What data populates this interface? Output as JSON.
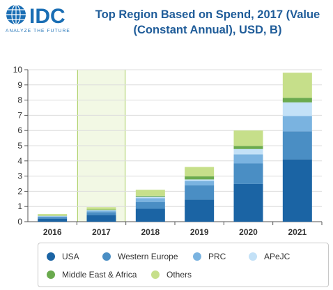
{
  "logo": {
    "text": "IDC",
    "tagline": "ANALYZE THE FUTURE"
  },
  "title": {
    "line1": "Top Region Based on Spend, 2017 (Value",
    "line2": "(Constant Annual), USD, B)"
  },
  "colors": {
    "USA": "#1b64a4",
    "Western Europe": "#4a8ec4",
    "PRC": "#7ab3e0",
    "APeJC": "#c3e1f7",
    "Middle East & Africa": "#6aaa4e",
    "Others": "#c6df8a",
    "highlight_fill": "#f2f8e4",
    "highlight_border": "#a6cd5a",
    "logo_blue": "#1a6eb4",
    "title_blue": "#1f5c99"
  },
  "chart_data": {
    "type": "bar",
    "stacked": true,
    "categories": [
      "2016",
      "2017",
      "2018",
      "2019",
      "2020",
      "2021"
    ],
    "highlight_category": "2017",
    "series": [
      {
        "name": "USA",
        "values": [
          0.2,
          0.45,
          0.85,
          1.45,
          2.48,
          4.1
        ]
      },
      {
        "name": "Western Europe",
        "values": [
          0.1,
          0.18,
          0.45,
          0.95,
          1.35,
          1.85
        ]
      },
      {
        "name": "PRC",
        "values": [
          0.05,
          0.1,
          0.25,
          0.28,
          0.6,
          1.0
        ]
      },
      {
        "name": "APeJC",
        "values": [
          0.03,
          0.04,
          0.1,
          0.1,
          0.35,
          0.9
        ]
      },
      {
        "name": "Middle East & Africa",
        "values": [
          0.02,
          0.03,
          0.05,
          0.2,
          0.2,
          0.3
        ]
      },
      {
        "name": "Others",
        "values": [
          0.1,
          0.15,
          0.4,
          0.62,
          1.02,
          1.65
        ]
      }
    ],
    "ylim": [
      0,
      10
    ],
    "yticks": [
      0,
      1,
      2,
      3,
      4,
      5,
      6,
      7,
      8,
      9,
      10
    ],
    "grid": true,
    "legend_position": "bottom"
  }
}
